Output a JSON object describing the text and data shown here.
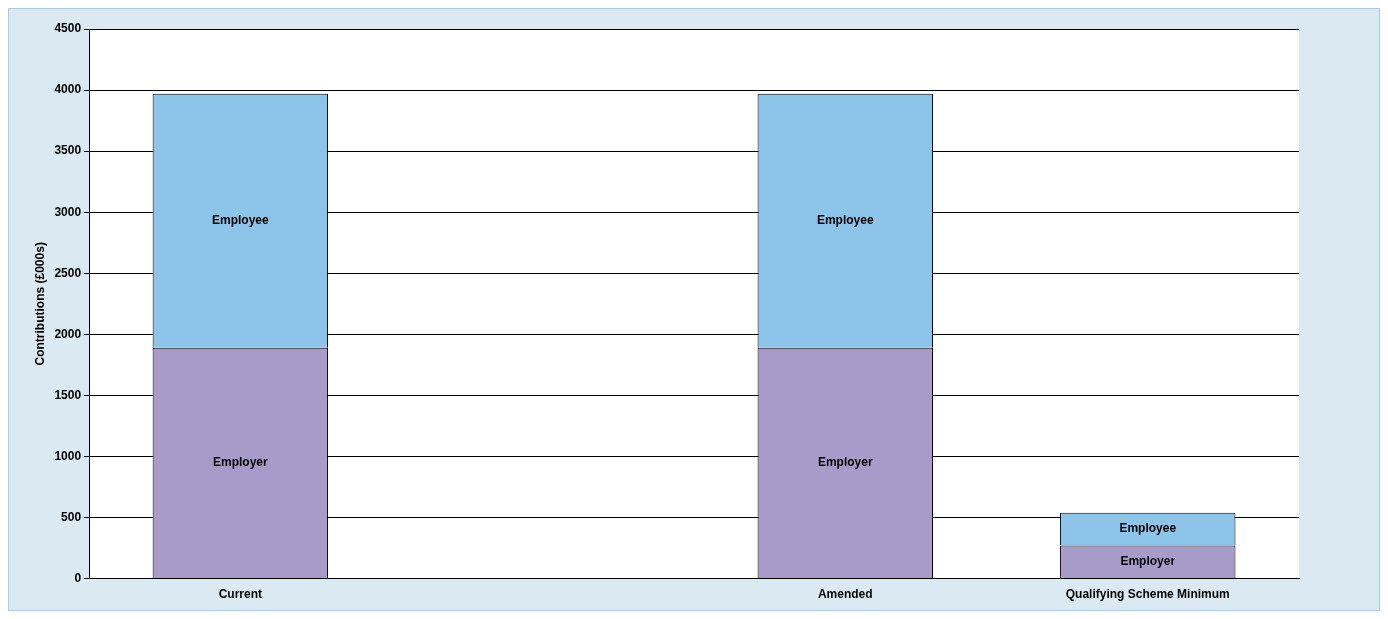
{
  "chart_data": {
    "type": "bar",
    "stacked": true,
    "ylabel": "Contributions (£000s)",
    "categories": [
      "Current",
      null,
      "Amended",
      "Qualifying Scheme Minimum"
    ],
    "series": [
      {
        "name": "Employer",
        "color": "#a99bc9",
        "values": [
          1890,
          null,
          1890,
          270
        ]
      },
      {
        "name": "Employee",
        "color": "#8cc4ea",
        "values": [
          2080,
          null,
          2080,
          270
        ]
      }
    ],
    "ylim": [
      0,
      4500
    ],
    "yticks": [
      0,
      500,
      1000,
      1500,
      2000,
      2500,
      3000,
      3500,
      4000,
      4500
    ],
    "grid": "y",
    "legend": false
  }
}
